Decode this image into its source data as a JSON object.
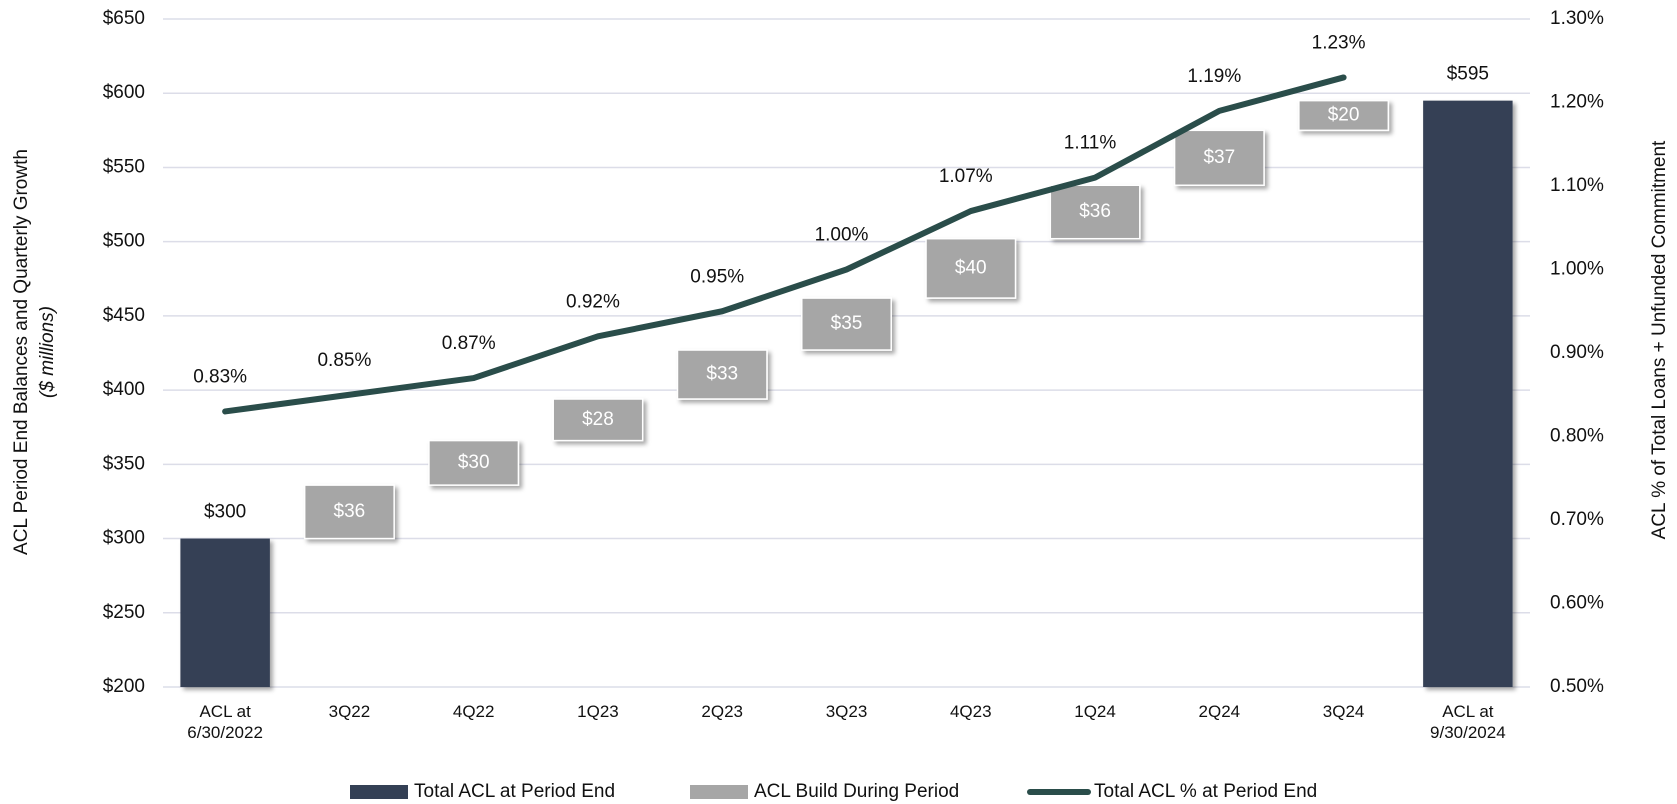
{
  "chart_data": {
    "type": "waterfall",
    "categories": [
      "ACL at 6/30/2022",
      "3Q22",
      "4Q22",
      "1Q23",
      "2Q23",
      "3Q23",
      "4Q23",
      "1Q24",
      "2Q24",
      "3Q24",
      "ACL at 9/30/2024"
    ],
    "series": [
      {
        "name": "Total ACL at Period End",
        "color": "#344055",
        "kind": "total",
        "values": [
          300,
          null,
          null,
          null,
          null,
          null,
          null,
          null,
          null,
          null,
          595
        ],
        "value_labels": [
          "$300",
          null,
          null,
          null,
          null,
          null,
          null,
          null,
          null,
          null,
          "$595"
        ]
      },
      {
        "name": "ACL Build During Period",
        "color": "#a6a6a6",
        "kind": "step",
        "values": [
          null,
          36,
          30,
          28,
          33,
          35,
          40,
          36,
          37,
          20,
          null
        ],
        "value_labels": [
          null,
          "$36",
          "$30",
          "$28",
          "$33",
          "$35",
          "$40",
          "$36",
          "$37",
          "$20",
          null
        ]
      },
      {
        "name": "Total ACL % at Period End",
        "color": "#2a4d4a",
        "kind": "line",
        "axis": "y2",
        "values": [
          0.83,
          0.85,
          0.87,
          0.92,
          0.95,
          1.0,
          1.07,
          1.11,
          1.19,
          1.23,
          null
        ],
        "value_labels": [
          "0.83%",
          "0.85%",
          "0.87%",
          "0.92%",
          "0.95%",
          "1.00%",
          "1.07%",
          "1.11%",
          "1.19%",
          "1.23%",
          null
        ]
      }
    ],
    "y_label": "ACL Period End Balances and Quarterly Growth",
    "y_label_sub": "($ millions)",
    "y2_label": "ACL % of Total Loans + Unfunded Commitment",
    "ylim": [
      200,
      650
    ],
    "yticks": [
      {
        "value": 200,
        "label": "$200"
      },
      {
        "value": 250,
        "label": "$250"
      },
      {
        "value": 300,
        "label": "$300"
      },
      {
        "value": 350,
        "label": "$350"
      },
      {
        "value": 400,
        "label": "$400"
      },
      {
        "value": 450,
        "label": "$450"
      },
      {
        "value": 500,
        "label": "$500"
      },
      {
        "value": 550,
        "label": "$550"
      },
      {
        "value": 600,
        "label": "$600"
      },
      {
        "value": 650,
        "label": "$650"
      }
    ],
    "y2lim": [
      0.5,
      1.3
    ],
    "y2ticks": [
      {
        "value": 0.5,
        "label": "0.50%"
      },
      {
        "value": 0.6,
        "label": "0.60%"
      },
      {
        "value": 0.7,
        "label": "0.70%"
      },
      {
        "value": 0.8,
        "label": "0.80%"
      },
      {
        "value": 0.9,
        "label": "0.90%"
      },
      {
        "value": 1.0,
        "label": "1.00%"
      },
      {
        "value": 1.1,
        "label": "1.10%"
      },
      {
        "value": 1.2,
        "label": "1.20%"
      },
      {
        "value": 1.3,
        "label": "1.30%"
      }
    ],
    "grid": true,
    "legend": "bottom"
  }
}
